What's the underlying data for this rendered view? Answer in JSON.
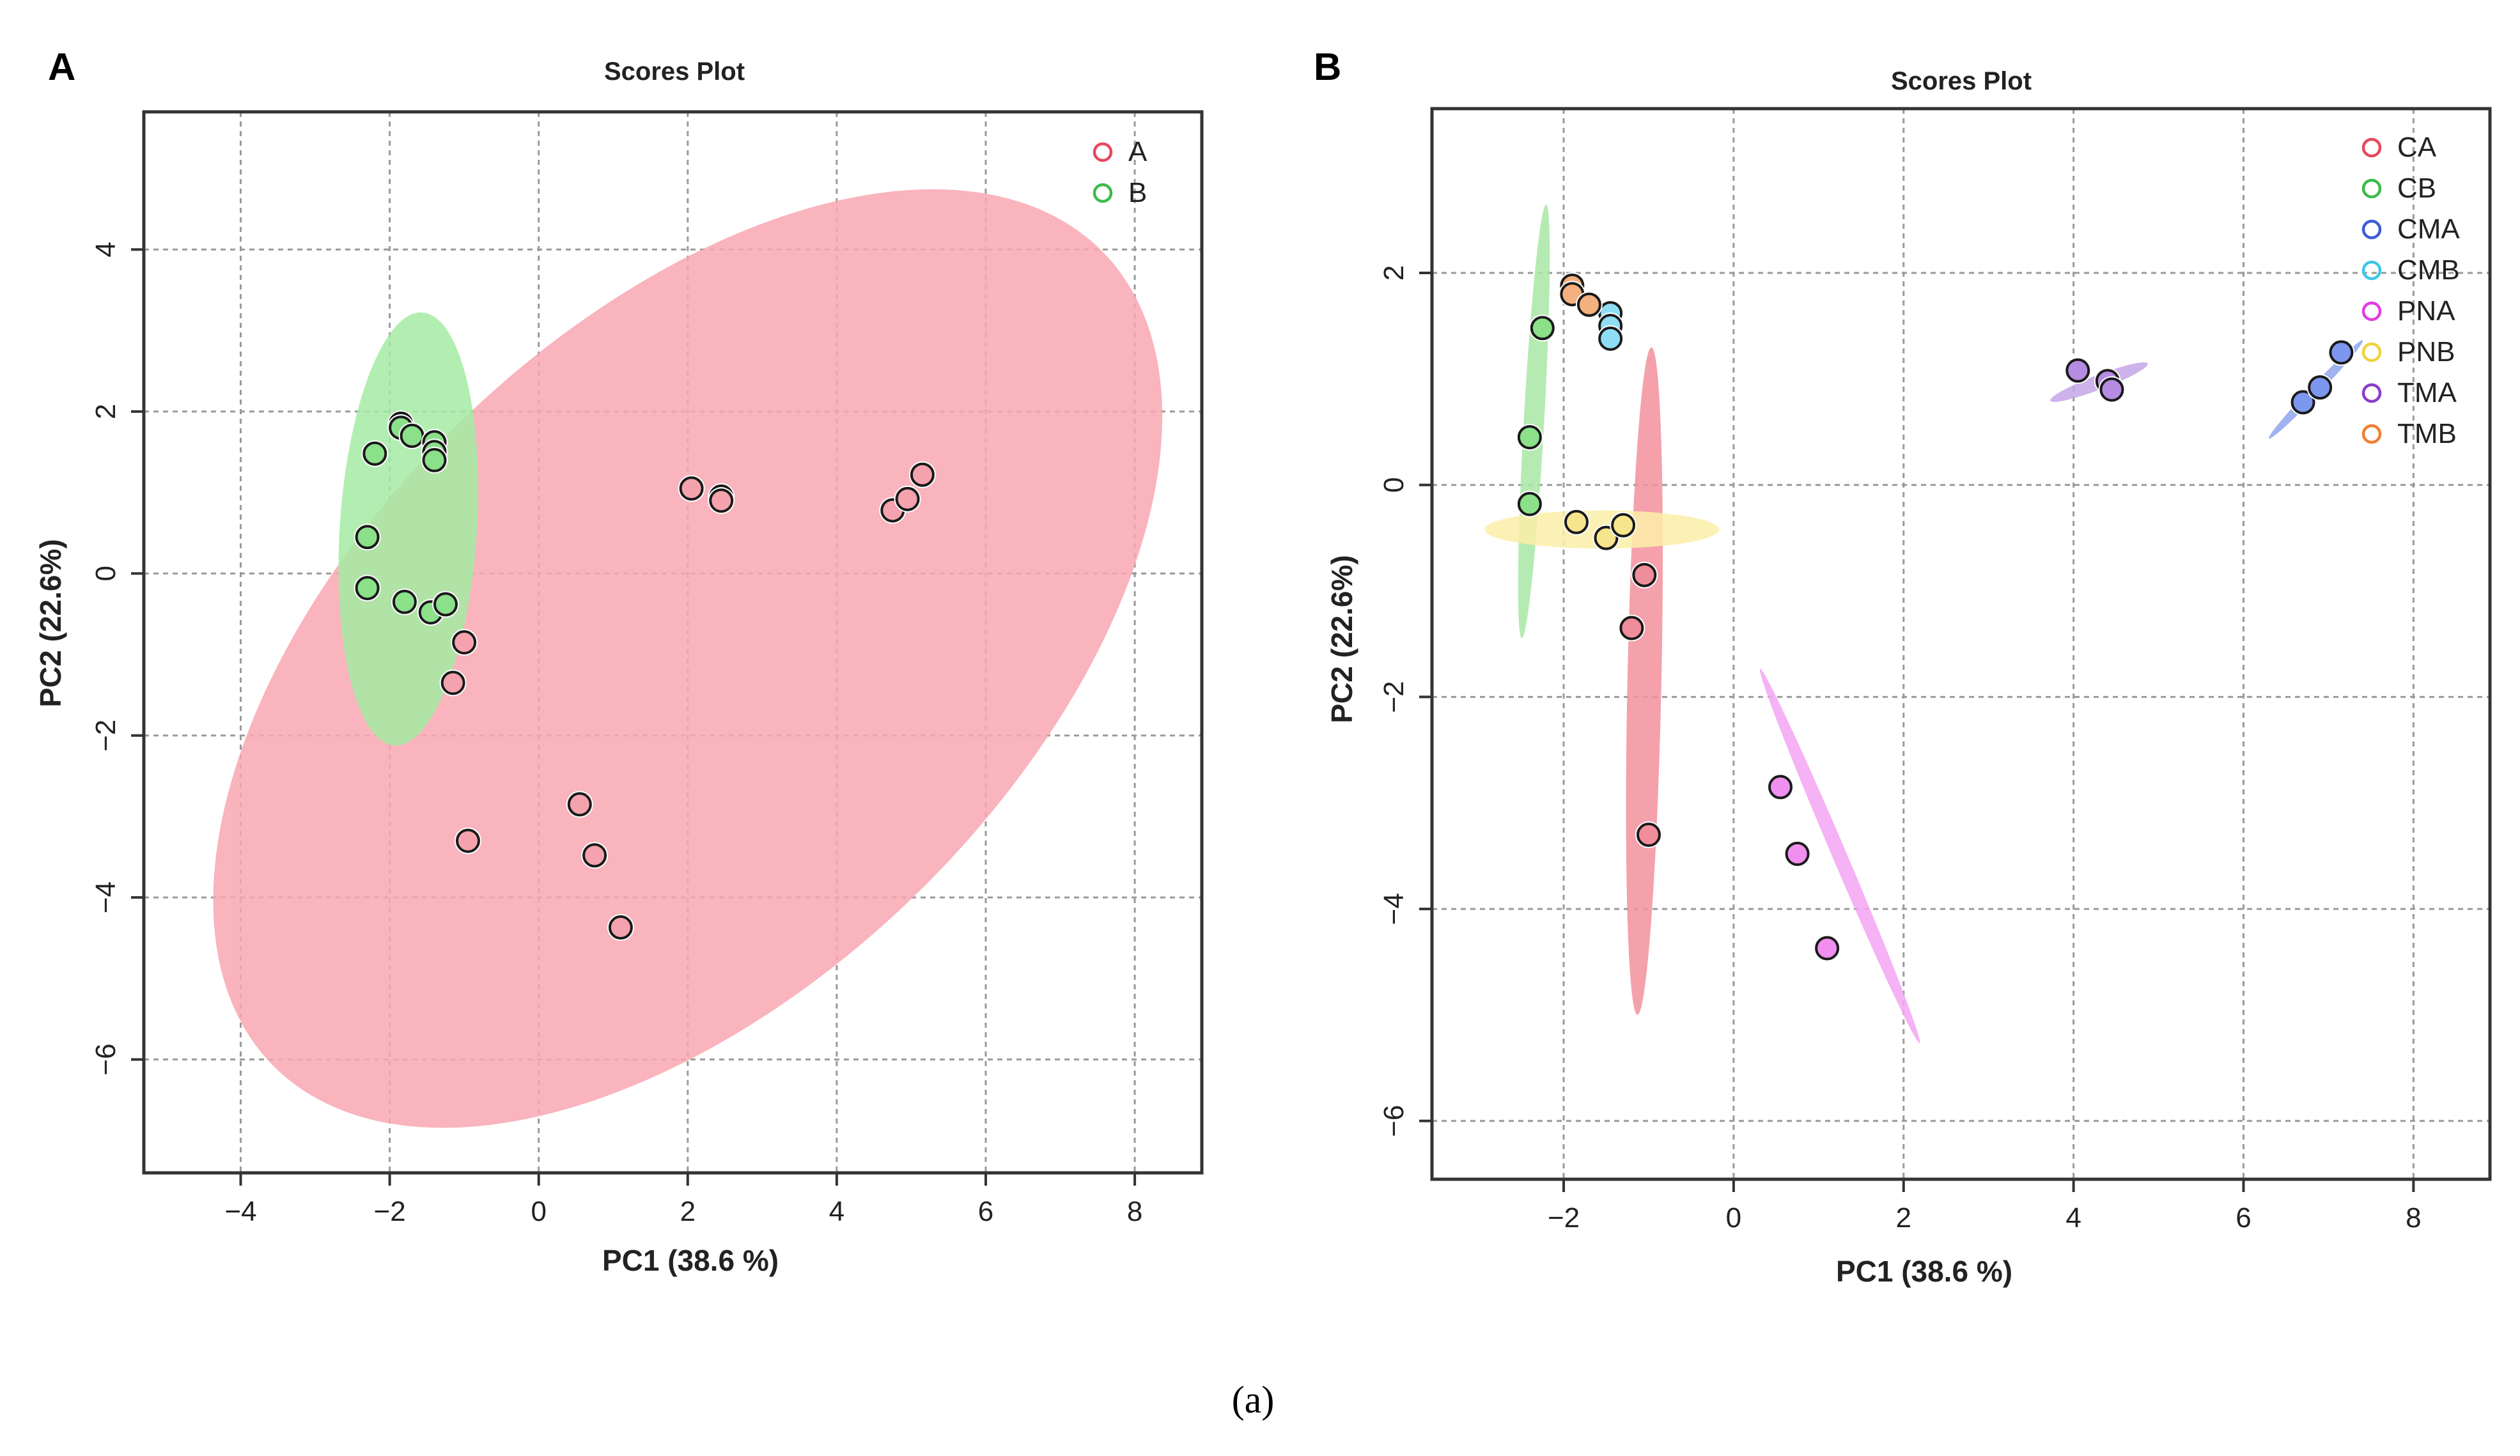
{
  "caption": "(a)",
  "chart_data": [
    {
      "id": "A",
      "panel_label": "A",
      "type": "scatter",
      "title": "Scores Plot",
      "xlabel": "PC1 (38.6 %)",
      "ylabel": "PC2 (22.6%)",
      "xlim": [
        -5.3,
        8.9
      ],
      "ylim": [
        -7.4,
        5.7
      ],
      "xticks": [
        -4,
        -2,
        0,
        2,
        4,
        6,
        8
      ],
      "yticks": [
        4,
        2,
        0,
        -2,
        -4,
        -6
      ],
      "xtick_labels": [
        "−4",
        "−2",
        "0",
        "2",
        "4",
        "6",
        "8"
      ],
      "ytick_labels": [
        "4",
        "2",
        "0",
        "−2",
        "−4",
        "−6"
      ],
      "grid": true,
      "legend": "top-right",
      "series": [
        {
          "name": "A",
          "color": "#E8475F",
          "fill": "#F4A3AE",
          "ellipse": {
            "cx": 2.0,
            "cy": -1.05,
            "rx": 7.5,
            "ry": 4.2,
            "angle": 42,
            "fill": "#F8A7B1"
          },
          "points": [
            [
              -1.0,
              -0.85
            ],
            [
              -1.15,
              -1.35
            ],
            [
              -0.95,
              -3.3
            ],
            [
              2.05,
              1.05
            ],
            [
              2.45,
              0.95
            ],
            [
              2.45,
              0.9
            ],
            [
              4.75,
              0.78
            ],
            [
              4.95,
              0.92
            ],
            [
              5.15,
              1.22
            ],
            [
              0.55,
              -2.85
            ],
            [
              0.75,
              -3.48
            ],
            [
              1.1,
              -4.37
            ]
          ]
        },
        {
          "name": "B",
          "color": "#3DBB4A",
          "fill": "#8BE08A",
          "ellipse": {
            "cx": -1.75,
            "cy": 0.55,
            "rx": 2.68,
            "ry": 0.92,
            "angle": 86,
            "fill": "#A5EBA3"
          },
          "points": [
            [
              -1.85,
              1.85
            ],
            [
              -1.85,
              1.8
            ],
            [
              -1.7,
              1.7
            ],
            [
              -1.4,
              1.62
            ],
            [
              -1.4,
              1.5
            ],
            [
              -1.4,
              1.4
            ],
            [
              -2.2,
              1.48
            ],
            [
              -2.3,
              0.45
            ],
            [
              -2.3,
              -0.18
            ],
            [
              -1.8,
              -0.35
            ],
            [
              -1.45,
              -0.48
            ],
            [
              -1.25,
              -0.38
            ]
          ]
        }
      ]
    },
    {
      "id": "B",
      "panel_label": "B",
      "type": "scatter",
      "title": "Scores Plot",
      "xlabel": "PC1 (38.6 %)",
      "ylabel": "PC2 (22.6%)",
      "xlim": [
        -3.55,
        8.9
      ],
      "ylim": [
        -6.55,
        3.55
      ],
      "xticks": [
        -2,
        0,
        2,
        4,
        6,
        8
      ],
      "yticks": [
        2,
        0,
        -2,
        -4,
        -6
      ],
      "xtick_labels": [
        "−2",
        "0",
        "2",
        "4",
        "6",
        "8"
      ],
      "ytick_labels": [
        "2",
        "0",
        "−2",
        "−4",
        "−6"
      ],
      "grid": true,
      "legend": "top-right",
      "series": [
        {
          "name": "CA",
          "color": "#E8475F",
          "fill": "#F08D9A",
          "ellipse": {
            "cx": -1.05,
            "cy": -1.85,
            "rx": 3.15,
            "ry": 0.2,
            "angle": 88.5,
            "fill": "#F2919E"
          },
          "points": [
            [
              -1.05,
              -0.85
            ],
            [
              -1.2,
              -1.35
            ],
            [
              -1.0,
              -3.3
            ]
          ]
        },
        {
          "name": "CB",
          "color": "#3DBB4A",
          "fill": "#8BE08A",
          "ellipse": {
            "cx": -2.35,
            "cy": 0.6,
            "rx": 2.05,
            "ry": 0.12,
            "angle": 86,
            "fill": "#A8E8A5"
          },
          "points": [
            [
              -2.25,
              1.48
            ],
            [
              -2.4,
              0.45
            ],
            [
              -2.4,
              -0.18
            ]
          ]
        },
        {
          "name": "CMA",
          "color": "#3F5BD8",
          "fill": "#7D97EE",
          "ellipse": {
            "cx": 6.85,
            "cy": 0.9,
            "rx": 0.72,
            "ry": 0.05,
            "angle": 40,
            "fill": "#8FA5EC"
          },
          "points": [
            [
              6.7,
              0.78
            ],
            [
              6.9,
              0.92
            ],
            [
              7.15,
              1.25
            ]
          ]
        },
        {
          "name": "CMB",
          "color": "#3CC8E6",
          "fill": "#8FDDF5",
          "ellipse": null,
          "points": [
            [
              -1.45,
              1.62
            ],
            [
              -1.45,
              1.5
            ],
            [
              -1.45,
              1.38
            ]
          ]
        },
        {
          "name": "PNA",
          "color": "#E23CE0",
          "fill": "#F08FEF",
          "ellipse": {
            "cx": 1.25,
            "cy": -3.5,
            "rx": 2.0,
            "ry": 0.08,
            "angle": -62,
            "fill": "#F3A4F2"
          },
          "points": [
            [
              0.55,
              -2.85
            ],
            [
              0.75,
              -3.48
            ],
            [
              1.1,
              -4.37
            ]
          ]
        },
        {
          "name": "PNB",
          "color": "#EFD23C",
          "fill": "#F6E58C",
          "ellipse": {
            "cx": -1.55,
            "cy": -0.42,
            "rx": 1.38,
            "ry": 0.18,
            "angle": 0,
            "fill": "#FBEEA8"
          },
          "points": [
            [
              -1.85,
              -0.35
            ],
            [
              -1.5,
              -0.5
            ],
            [
              -1.3,
              -0.38
            ]
          ]
        },
        {
          "name": "TMA",
          "color": "#8E3CC8",
          "fill": "#B58CE2",
          "ellipse": {
            "cx": 4.3,
            "cy": 0.97,
            "rx": 0.6,
            "ry": 0.07,
            "angle": 17,
            "fill": "#C4A6E8"
          },
          "points": [
            [
              4.05,
              1.08
            ],
            [
              4.4,
              0.98
            ],
            [
              4.45,
              0.9
            ]
          ]
        },
        {
          "name": "TMB",
          "color": "#F07E2E",
          "fill": "#F4B07E",
          "ellipse": null,
          "points": [
            [
              -1.9,
              1.88
            ],
            [
              -1.9,
              1.8
            ],
            [
              -1.7,
              1.7
            ]
          ]
        }
      ]
    }
  ]
}
